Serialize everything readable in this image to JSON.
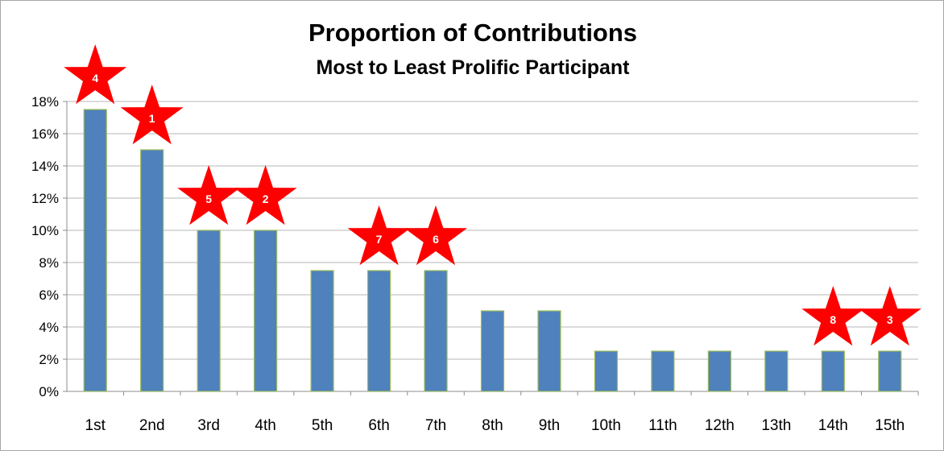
{
  "chart_data": {
    "type": "bar",
    "title": "Proportion of Contributions",
    "subtitle": "Most to Least Prolific Participant",
    "xlabel": "",
    "ylabel": "",
    "categories": [
      "1st",
      "2nd",
      "3rd",
      "4th",
      "5th",
      "6th",
      "7th",
      "8th",
      "9th",
      "10th",
      "11th",
      "12th",
      "13th",
      "14th",
      "15th"
    ],
    "values": [
      17.5,
      15.0,
      10.0,
      10.0,
      7.5,
      7.5,
      7.5,
      5.0,
      5.0,
      2.5,
      2.5,
      2.5,
      2.5,
      2.5,
      2.5
    ],
    "ylim": [
      0,
      18
    ],
    "yticks": [
      "0%",
      "2%",
      "4%",
      "6%",
      "8%",
      "10%",
      "12%",
      "14%",
      "16%",
      "18%"
    ],
    "grid": true,
    "legend": "none",
    "annotations": [
      {
        "category": "1st",
        "label": "4"
      },
      {
        "category": "2nd",
        "label": "1"
      },
      {
        "category": "3rd",
        "label": "5"
      },
      {
        "category": "4th",
        "label": "2"
      },
      {
        "category": "6th",
        "label": "7"
      },
      {
        "category": "7th",
        "label": "6"
      },
      {
        "category": "14th",
        "label": "8"
      },
      {
        "category": "15th",
        "label": "3"
      }
    ],
    "colors": {
      "bar_fill": "#4f81bd",
      "bar_edge": "#9bbb59",
      "gridline": "#b7b7b7",
      "star_fill": "#ff0000",
      "star_text": "#ffffff"
    }
  }
}
